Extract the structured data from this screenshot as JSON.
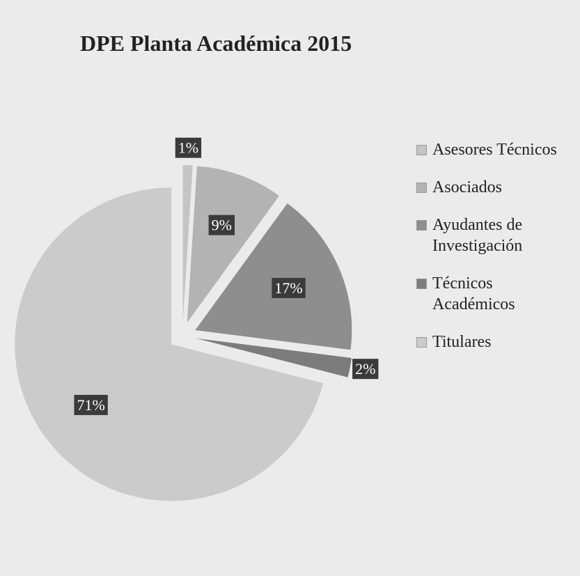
{
  "chart_data": {
    "type": "pie",
    "title": "DPE Planta Académica 2015",
    "categories": [
      "Asesores Técnicos",
      "Asociados",
      "Ayudantes de Investigación",
      "Técnicos Académicos",
      "Titulares"
    ],
    "values": [
      1,
      9,
      17,
      2,
      71
    ],
    "value_labels": [
      "1%",
      "9%",
      "17%",
      "2%",
      "71%"
    ],
    "colors": [
      "#c4c4c4",
      "#b3b3b3",
      "#8e8e8e",
      "#7c7c7c",
      "#cbcbcb"
    ],
    "legend": "right"
  }
}
